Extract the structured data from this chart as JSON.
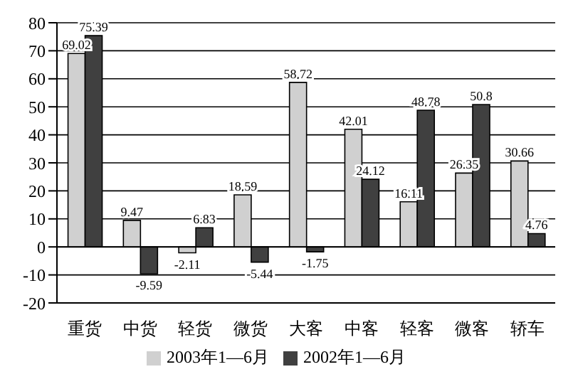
{
  "chart_data": {
    "type": "bar",
    "categories": [
      "重货",
      "中货",
      "轻货",
      "微货",
      "大客",
      "中客",
      "轻客",
      "微客",
      "轿车"
    ],
    "series": [
      {
        "name": "2003年1—6月",
        "color": "#d0d0d0",
        "values": [
          69.02,
          9.47,
          -2.11,
          18.59,
          58.72,
          42.01,
          16.11,
          26.35,
          30.66
        ]
      },
      {
        "name": "2002年1—6月",
        "color": "#404040",
        "values": [
          75.39,
          -9.59,
          6.83,
          -5.44,
          -1.75,
          24.12,
          48.78,
          50.8,
          4.76
        ]
      }
    ],
    "ylim": [
      -20,
      80
    ],
    "yticks": [
      -20,
      -10,
      0,
      10,
      20,
      30,
      40,
      50,
      60,
      70,
      80
    ],
    "grid": "y",
    "legend": "bottom",
    "data_labels": true
  }
}
